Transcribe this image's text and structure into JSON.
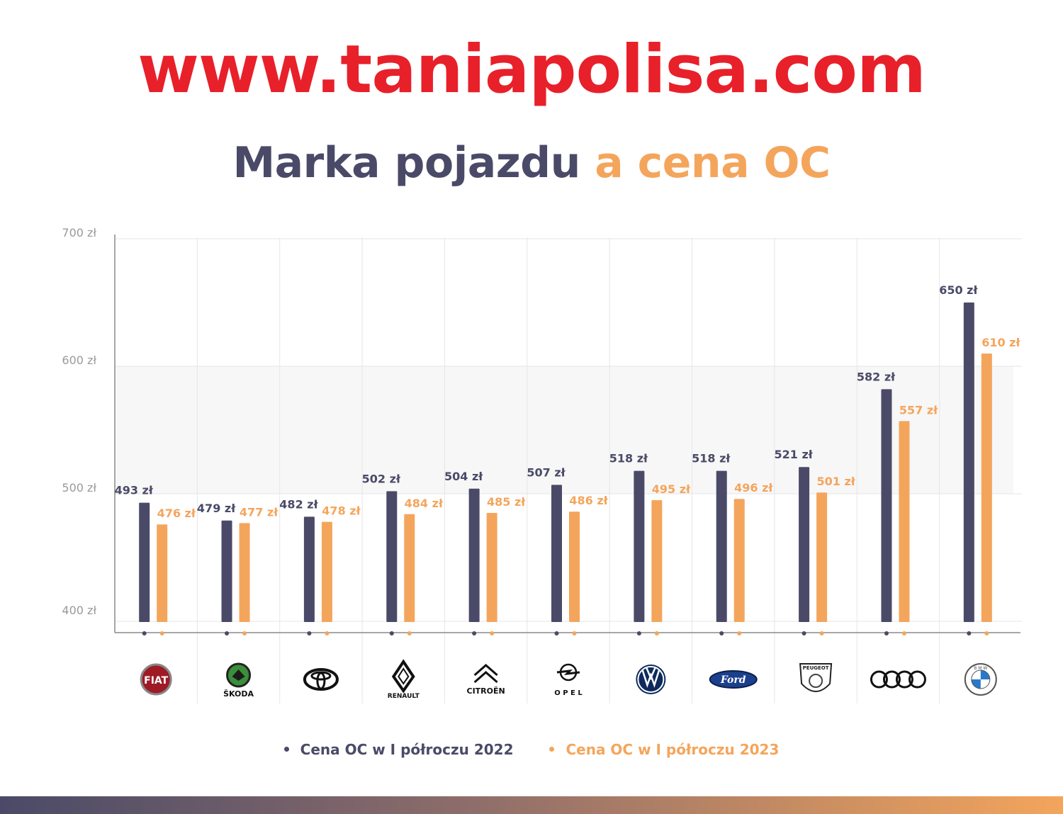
{
  "header": {
    "site_url": "www.taniapolisa.com",
    "title_part1": "Marka pojazdu",
    "title_part2": "a cena OC"
  },
  "colors": {
    "series_2022": "#4a4a68",
    "series_2023": "#f4a55c",
    "url_red": "#e8202a"
  },
  "legend": {
    "item_2022": "Cena OC w I półroczu 2022",
    "item_2023": "Cena OC w I półroczu 2023"
  },
  "chart_data": {
    "type": "bar",
    "title": "Marka pojazdu a cena OC",
    "categories": [
      "FIAT",
      "ŠKODA",
      "TOYOTA",
      "RENAULT",
      "CITROËN",
      "OPEL",
      "VOLKSWAGEN",
      "FORD",
      "PEUGEOT",
      "AUDI",
      "BMW"
    ],
    "series": [
      {
        "name": "Cena OC w I półroczu 2022",
        "values": [
          493,
          479,
          482,
          502,
          504,
          507,
          518,
          518,
          521,
          582,
          650
        ]
      },
      {
        "name": "Cena OC w I półroczu 2023",
        "values": [
          476,
          477,
          478,
          484,
          485,
          486,
          495,
          496,
          501,
          557,
          610
        ]
      }
    ],
    "value_suffix": " zł",
    "yticks": [
      "400 zł",
      "500 zł",
      "600 zł",
      "700 zł"
    ],
    "ylim": [
      400,
      700
    ],
    "legend_position": "bottom",
    "logos": [
      {
        "icon": "fiat-logo-icon",
        "text": "FIAT"
      },
      {
        "icon": "skoda-logo-icon",
        "text": "ŠKODA"
      },
      {
        "icon": "toyota-logo-icon",
        "text": ""
      },
      {
        "icon": "renault-logo-icon",
        "text": "RENAULT"
      },
      {
        "icon": "citroen-logo-icon",
        "text": "CITROËN"
      },
      {
        "icon": "opel-logo-icon",
        "text": "O P E L"
      },
      {
        "icon": "volkswagen-logo-icon",
        "text": ""
      },
      {
        "icon": "ford-logo-icon",
        "text": "Ford"
      },
      {
        "icon": "peugeot-logo-icon",
        "text": "PEUGEOT"
      },
      {
        "icon": "audi-logo-icon",
        "text": ""
      },
      {
        "icon": "bmw-logo-icon",
        "text": "B M W"
      }
    ]
  }
}
